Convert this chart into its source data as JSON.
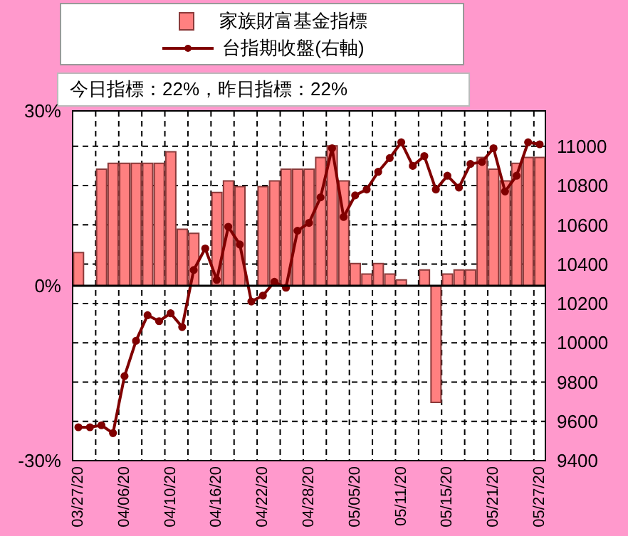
{
  "chart_data": {
    "type": "bar",
    "categories": [
      "03/27/20",
      null,
      null,
      null,
      "04/06/20",
      null,
      null,
      null,
      "04/10/20",
      null,
      null,
      null,
      "04/16/20",
      null,
      null,
      null,
      "04/22/20",
      null,
      null,
      null,
      "04/28/20",
      null,
      null,
      null,
      "05/05/20",
      null,
      null,
      null,
      "05/11/20",
      null,
      null,
      null,
      "05/15/20",
      null,
      null,
      null,
      "05/21/20",
      null,
      null,
      null,
      "05/27/20"
    ],
    "series": [
      {
        "name": "家族財富基金指標",
        "color": "#ff8080",
        "values": [
          5.7,
          null,
          20,
          21,
          21,
          21,
          21,
          21,
          23,
          9.7,
          9,
          null,
          16,
          18,
          17,
          null,
          17,
          18,
          20,
          20,
          20,
          22,
          24,
          18,
          3.8,
          2,
          3.8,
          2,
          1,
          null,
          2.7,
          -20,
          2,
          2.7,
          2.7,
          22,
          20,
          18,
          21,
          22,
          22
        ]
      },
      {
        "name": "台指期收盤(右軸)",
        "type": "line",
        "axis": "y2",
        "color": "#800000",
        "values": [
          9570,
          9570,
          9580,
          9540,
          9830,
          10010,
          10140,
          10110,
          10150,
          10080,
          10370,
          10480,
          10320,
          10590,
          10500,
          10210,
          10240,
          10310,
          10280,
          10570,
          10610,
          10740,
          10990,
          10640,
          10750,
          10780,
          10870,
          10940,
          11020,
          10900,
          10950,
          10780,
          10850,
          10790,
          10910,
          10920,
          10990,
          10770,
          10850,
          11020,
          11010
        ]
      }
    ],
    "ylim": [
      -30,
      30
    ],
    "yticks": [
      {
        "value": -30,
        "label": "-30%"
      },
      {
        "value": 0,
        "label": "0%"
      },
      {
        "value": 30,
        "label": "30%"
      }
    ],
    "y2lim": [
      9400,
      11180
    ],
    "y2ticks": [
      9400,
      9600,
      9800,
      10000,
      10200,
      10400,
      10600,
      10800,
      11000
    ],
    "annotations": [
      "今日指標：22%，昨日指標：22%"
    ],
    "grid": true,
    "legend": "top",
    "marker": "circle",
    "line_style": "solid"
  }
}
